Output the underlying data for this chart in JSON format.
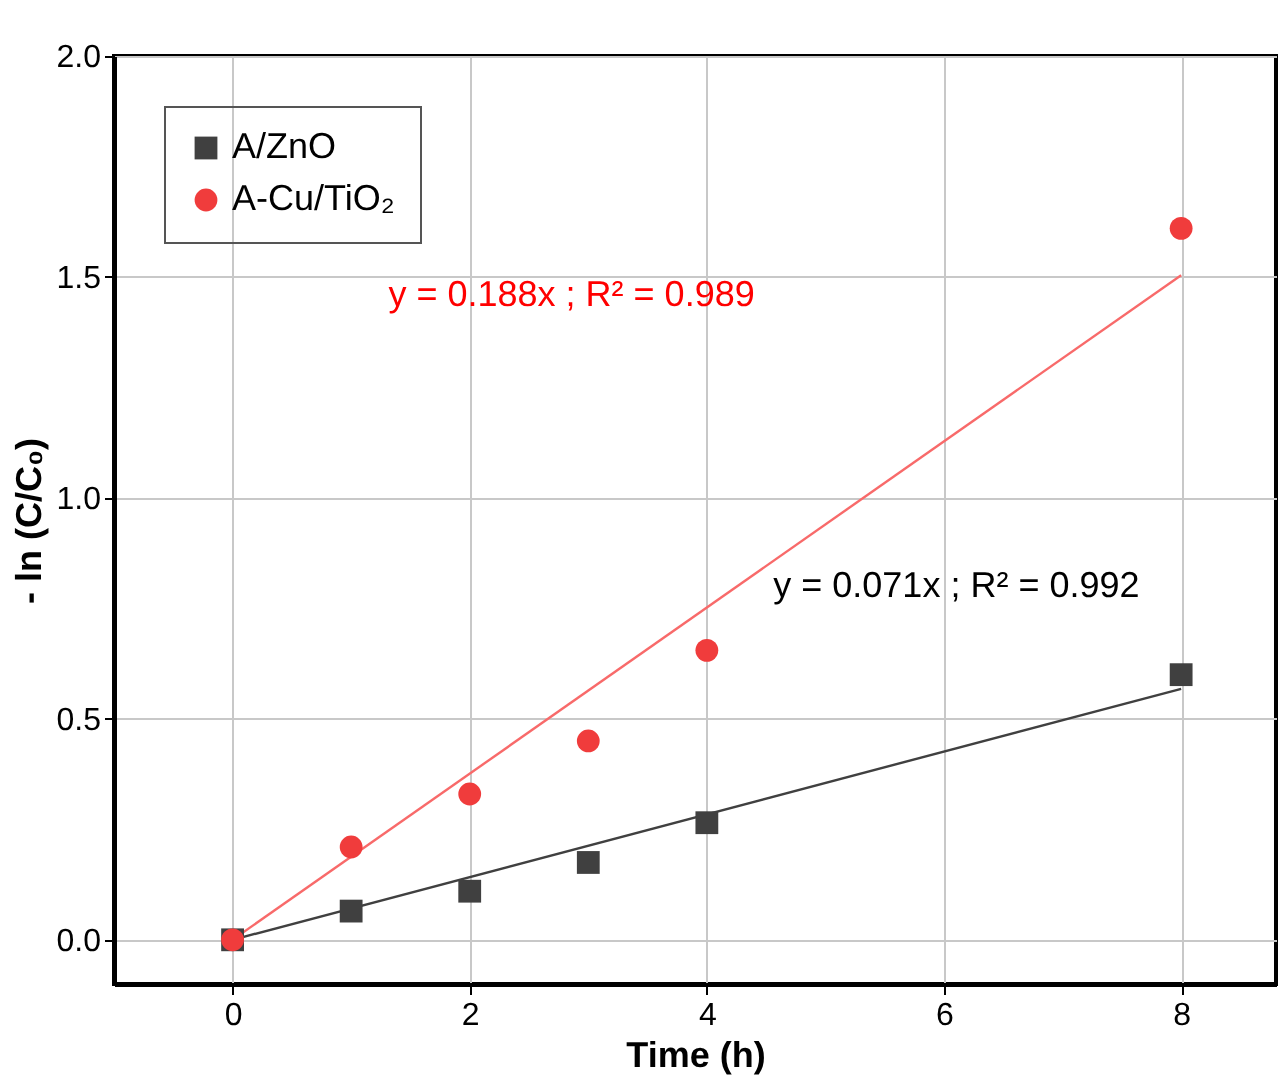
{
  "chart_data": {
    "type": "scatter",
    "xlabel": "Time (h)",
    "ylabel": "- ln (C/C₀)",
    "xlim": [
      -1,
      8.8
    ],
    "ylim": [
      -0.1,
      2.0
    ],
    "xticks": [
      0,
      2,
      4,
      6,
      8
    ],
    "yticks": [
      {
        "value": 0,
        "label": "0.0"
      },
      0.5,
      {
        "value": 1,
        "label": "1.0"
      },
      1.5,
      {
        "value": 2,
        "label": "2.0"
      }
    ],
    "grid": true,
    "legend": "top left",
    "series": [
      {
        "name": "A/ZnO",
        "marker": "square",
        "color": "#404040",
        "x": [
          0,
          1,
          2,
          3,
          4,
          8
        ],
        "values": [
          0,
          0.065,
          0.11,
          0.175,
          0.265,
          0.6
        ]
      },
      {
        "name": "A-Cu/TiO₂",
        "marker": "circle",
        "color": "#f03c3c",
        "x": [
          0,
          1,
          2,
          3,
          4,
          8
        ],
        "values": [
          0,
          0.21,
          0.33,
          0.45,
          0.655,
          1.61
        ]
      },
      {
        "type": "line",
        "color": "#404040",
        "line_style": "solid",
        "x": [
          0,
          8
        ],
        "values": [
          0,
          0.568
        ]
      },
      {
        "type": "line",
        "color": "#f86a6a",
        "line_style": "solid",
        "x": [
          0,
          8
        ],
        "values": [
          0,
          1.504
        ]
      }
    ],
    "annotations": [
      "y = 0.188x ; R² = 0.989",
      "y = 0.071x ; R² = 0.992"
    ]
  }
}
